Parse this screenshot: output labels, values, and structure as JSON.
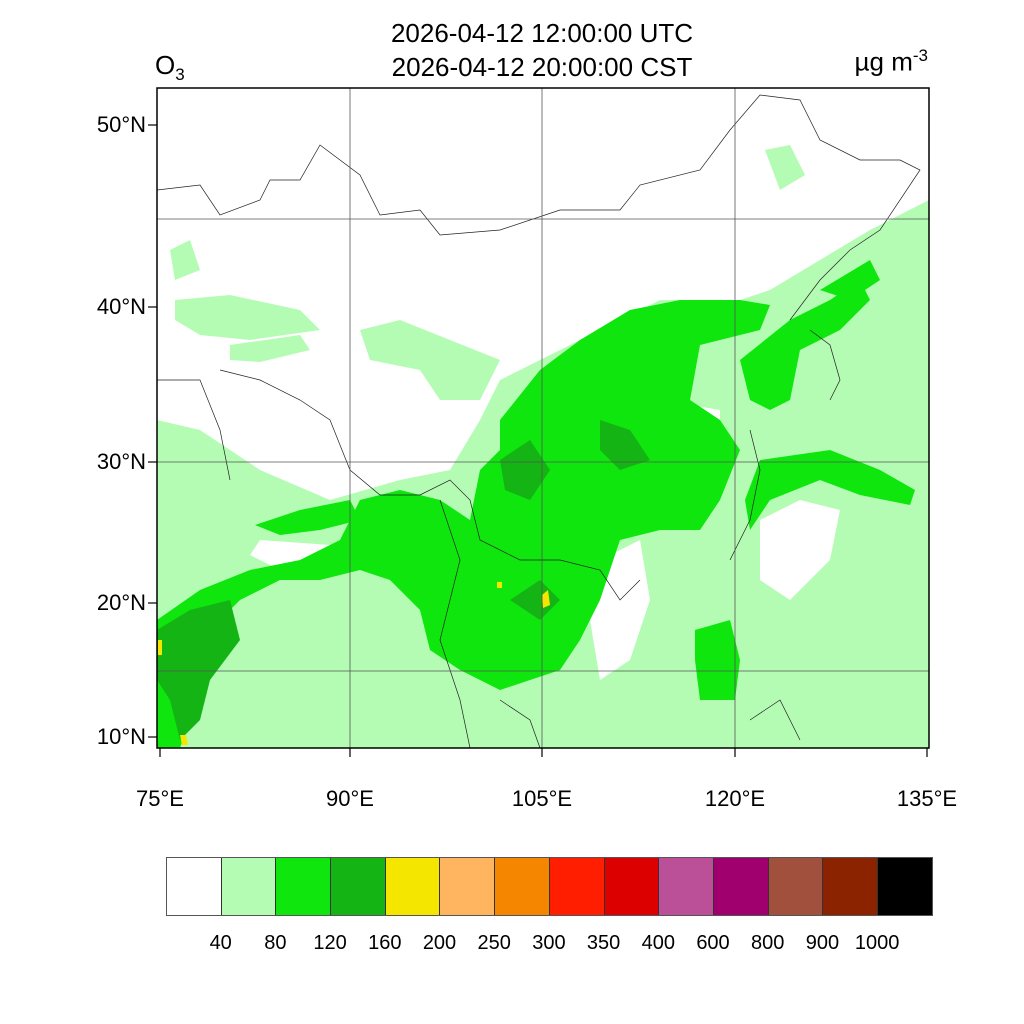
{
  "title": {
    "line1": "2026-04-12 12:00:00 UTC",
    "line2": "2026-04-12 20:00:00 CST"
  },
  "variable": {
    "base": "O",
    "sub": "3"
  },
  "units": {
    "base": "µg m",
    "sup": "-3"
  },
  "lat_labels": [
    "50°N",
    "40°N",
    "30°N",
    "20°N",
    "10°N"
  ],
  "lon_labels": [
    "75°E",
    "90°E",
    "105°E",
    "120°E",
    "135°E"
  ],
  "colorbar": {
    "colors": [
      "#ffffff",
      "#b4fcb4",
      "#0ee60e",
      "#14b414",
      "#f5e600",
      "#ffb45f",
      "#f58700",
      "#ff1e00",
      "#dc0000",
      "#bb4f98",
      "#a0006e",
      "#a0503c",
      "#8c2300",
      "#000000"
    ],
    "labels": [
      "40",
      "80",
      "120",
      "160",
      "200",
      "250",
      "300",
      "350",
      "400",
      "600",
      "800",
      "900",
      "1000"
    ]
  }
}
